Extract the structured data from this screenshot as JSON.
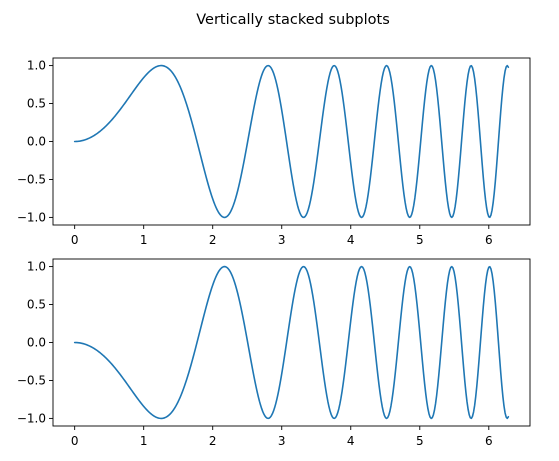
{
  "figure": {
    "title": "Vertically stacked subplots",
    "line_color": "#1f77b4"
  },
  "chart_data": [
    {
      "type": "line",
      "function": "sin(x^2)",
      "x_range": [
        0,
        6.283185307
      ],
      "num_points": 400,
      "xlim": [
        -0.314,
        6.597
      ],
      "ylim": [
        -1.1,
        1.1
      ],
      "xticks": [
        0,
        1,
        2,
        3,
        4,
        5,
        6
      ],
      "xtick_labels": [
        "0",
        "1",
        "2",
        "3",
        "4",
        "5",
        "6"
      ],
      "yticks": [
        1.0,
        0.5,
        0.0,
        -0.5,
        -1.0
      ],
      "ytick_labels": [
        "1.0",
        "0.5",
        "0.0",
        "−0.5",
        "−1.0"
      ],
      "grid": false,
      "color": "#1f77b4"
    },
    {
      "type": "line",
      "function": "-sin(x^2)",
      "x_range": [
        0,
        6.283185307
      ],
      "num_points": 400,
      "xlim": [
        -0.314,
        6.597
      ],
      "ylim": [
        -1.1,
        1.1
      ],
      "xticks": [
        0,
        1,
        2,
        3,
        4,
        5,
        6
      ],
      "xtick_labels": [
        "0",
        "1",
        "2",
        "3",
        "4",
        "5",
        "6"
      ],
      "yticks": [
        1.0,
        0.5,
        0.0,
        -0.5,
        -1.0
      ],
      "ytick_labels": [
        "1.0",
        "0.5",
        "0.0",
        "−0.5",
        "−1.0"
      ],
      "grid": false,
      "color": "#1f77b4"
    }
  ]
}
